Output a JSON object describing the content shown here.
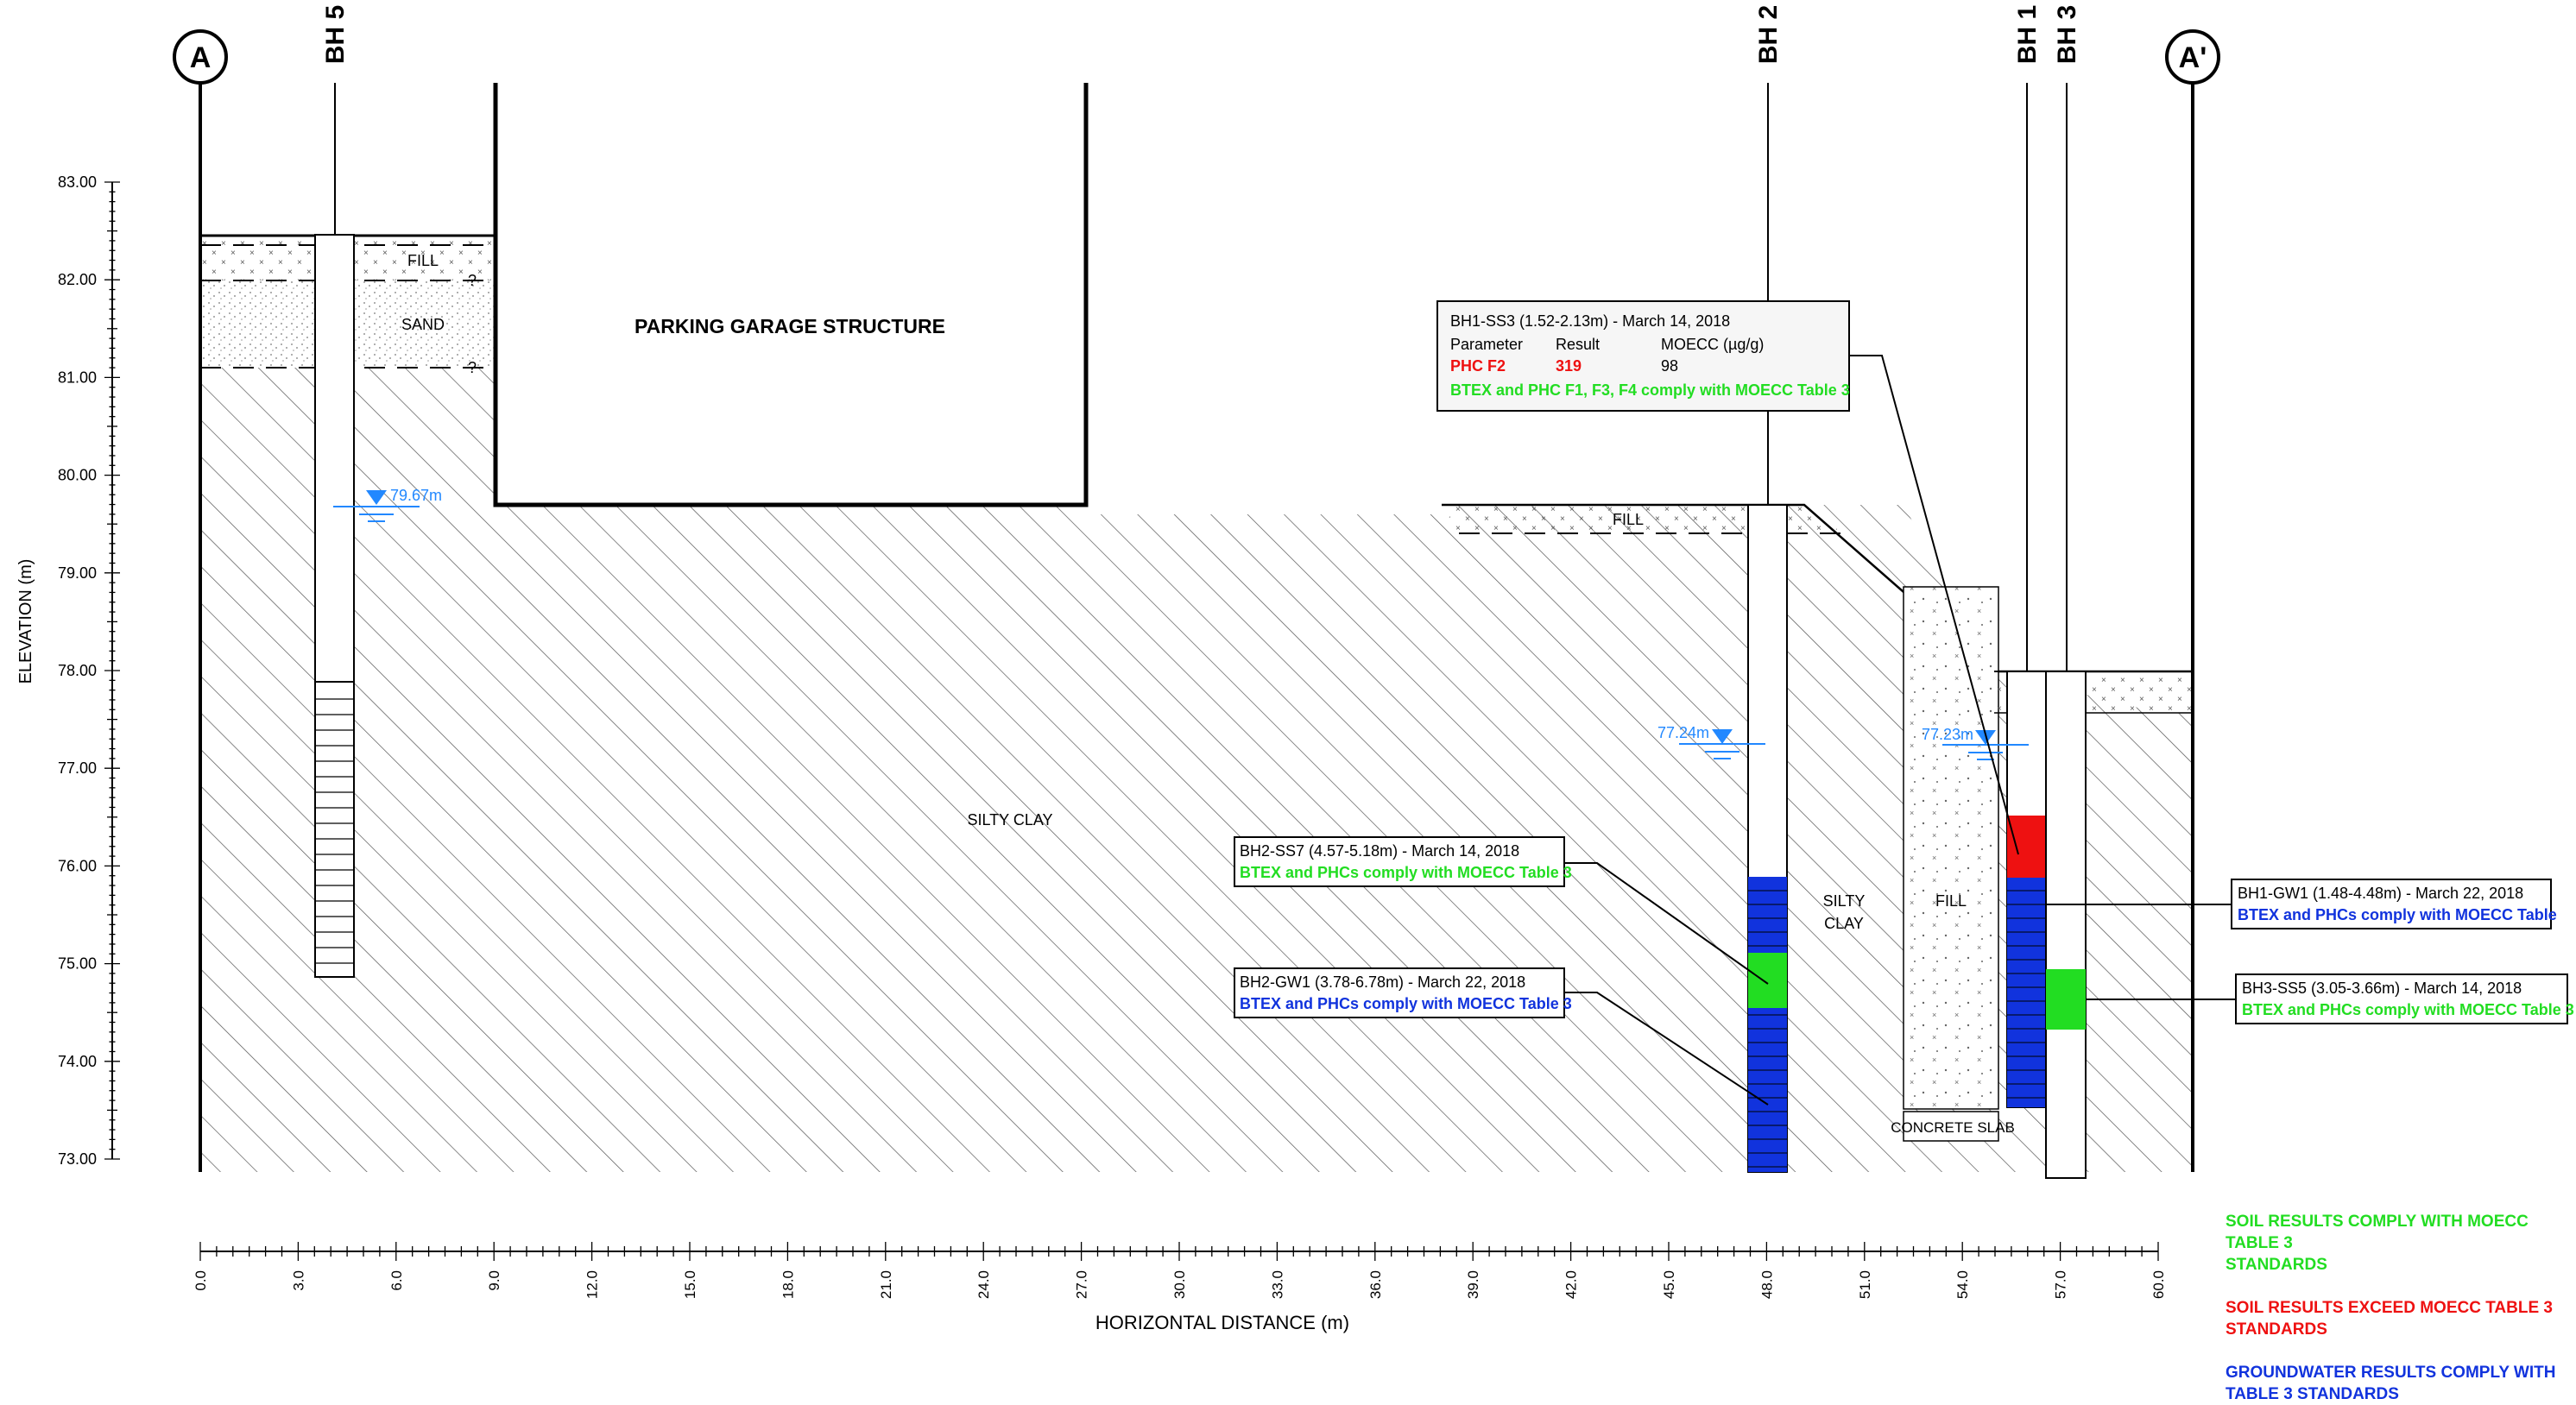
{
  "section": {
    "start_marker": "A",
    "end_marker": "A'",
    "y_axis_label": "ELEVATION (m)",
    "x_axis_label": "HORIZONTAL DISTANCE (m)",
    "y_ticks": [
      "73.00",
      "74.00",
      "75.00",
      "76.00",
      "77.00",
      "78.00",
      "79.00",
      "80.00",
      "81.00",
      "82.00",
      "83.00"
    ],
    "x_ticks": [
      "0.0",
      "3.0",
      "6.0",
      "9.0",
      "12.0",
      "15.0",
      "18.0",
      "21.0",
      "24.0",
      "27.0",
      "30.0",
      "33.0",
      "36.0",
      "39.0",
      "42.0",
      "45.0",
      "48.0",
      "51.0",
      "54.0",
      "57.0",
      "60.0"
    ]
  },
  "boreholes": {
    "bh5": "BH 5",
    "bh2": "BH 2",
    "bh1": "BH 1",
    "bh3": "BH 3"
  },
  "strata_labels": {
    "fill_bh5": "FILL",
    "sand": "SAND",
    "q1": "?",
    "q2": "?",
    "parking": "PARKING GARAGE STRUCTURE",
    "fill_bh2": "FILL",
    "silty_clay": "SILTY CLAY",
    "silty": "SILTY",
    "clay": "CLAY",
    "fill_right": "FILL",
    "concrete_slab": "CONCRETE SLAB"
  },
  "water_levels": {
    "bh5": "79.67m",
    "bh2": "77.24m",
    "bh1": "77.23m"
  },
  "callouts": {
    "bh1_ss3": {
      "title": "BH1-SS3 (1.52-2.13m) - March 14, 2018",
      "col_parameter": "Parameter",
      "col_result": "Result",
      "col_standard": "MOECC (µg/g)",
      "param": "PHC F2",
      "result": "319",
      "standard": "98",
      "note": "BTEX and PHC F1, F3, F4 comply with MOECC Table 3"
    },
    "bh2_ss7": {
      "title": "BH2-SS7 (4.57-5.18m) - March 14, 2018",
      "note": "BTEX and PHCs comply with MOECC Table 3"
    },
    "bh2_gw1": {
      "title": "BH2-GW1 (3.78-6.78m) - March 22, 2018",
      "note": "BTEX and PHCs comply with MOECC Table 3"
    },
    "bh1_gw1": {
      "title": "BH1-GW1 (1.48-4.48m) - March 22, 2018",
      "note": "BTEX and PHCs comply with MOECC Table"
    },
    "bh3_ss5": {
      "title": "BH3-SS5 (3.05-3.66m) - March 14, 2018",
      "note": "BTEX and PHCs comply with MOECC Table 3"
    }
  },
  "legend": {
    "soil_comply_1": "SOIL RESULTS COMPLY WITH MOECC TABLE 3",
    "soil_comply_2": "STANDARDS",
    "soil_exceed_1": "SOIL RESULTS EXCEED MOECC TABLE 3",
    "soil_exceed_2": "STANDARDS",
    "gw_comply_1": "GROUNDWATER RESULTS COMPLY WITH",
    "gw_comply_2": "TABLE 3 STANDARDS"
  },
  "colors": {
    "comply_green": "#22dd22",
    "exceed_red": "#ee1111",
    "groundwater_blue": "#1133dd",
    "water_label_blue": "#2288ff"
  }
}
